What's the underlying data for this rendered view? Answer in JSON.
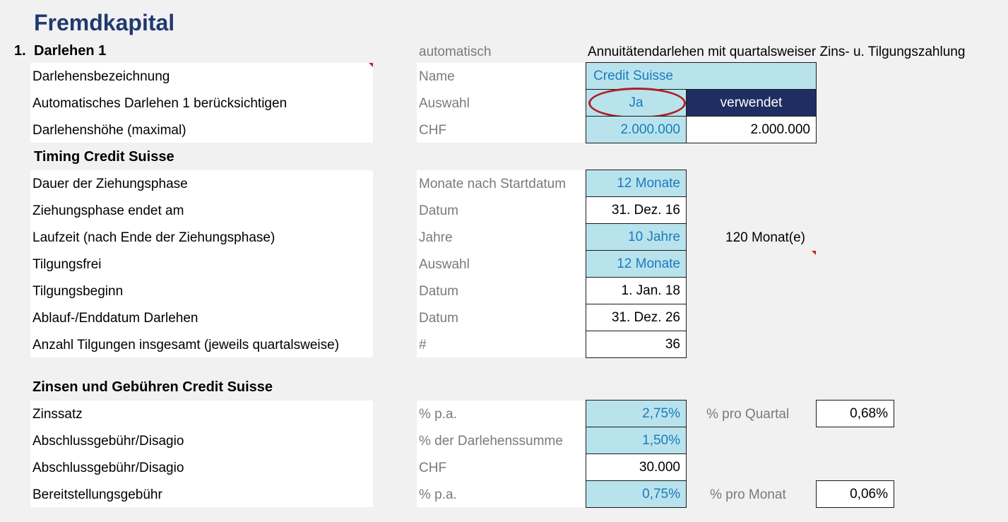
{
  "title": "Fremdkapital",
  "loan": {
    "number": "1.",
    "heading": "Darlehen 1",
    "mode": "automatisch",
    "description": "Annuitätendarlehen mit quartalsweiser Zins- u. Tilgungszahlung",
    "rows": [
      {
        "label": "Darlehensbezeichnung",
        "unit": "Name",
        "value": "Credit Suisse"
      },
      {
        "label": "Automatisches Darlehen 1 berücksichtigen",
        "unit": "Auswahl",
        "value": "Ja",
        "status": "verwendet"
      },
      {
        "label": "Darlehenshöhe (maximal)",
        "unit": "CHF",
        "value": "2.000.000",
        "result": "2.000.000"
      }
    ]
  },
  "timing": {
    "heading": "Timing Credit Suisse",
    "rows": [
      {
        "label": "Dauer der Ziehungsphase",
        "unit": "Monate nach Startdatum",
        "value": "12 Monate"
      },
      {
        "label": "Ziehungsphase endet am",
        "unit": "Datum",
        "value": "31. Dez. 16"
      },
      {
        "label": "Laufzeit (nach Ende der Ziehungsphase)",
        "unit": "Jahre",
        "value": "10 Jahre",
        "extra": "120 Monat(e)"
      },
      {
        "label": "Tilgungsfrei",
        "unit": "Auswahl",
        "value": "12 Monate"
      },
      {
        "label": "Tilgungsbeginn",
        "unit": "Datum",
        "value": "1. Jan. 18"
      },
      {
        "label": "Ablauf-/Enddatum Darlehen",
        "unit": "Datum",
        "value": "31. Dez. 26"
      },
      {
        "label": "Anzahl Tilgungen insgesamt (jeweils quartalsweise)",
        "unit": "#",
        "value": "36"
      }
    ]
  },
  "fees": {
    "heading": "Zinsen und Gebühren Credit Suisse",
    "rows": [
      {
        "label": "Zinssatz",
        "unit": "% p.a.",
        "value": "2,75%",
        "extra_label": "% pro Quartal",
        "extra_value": "0,68%"
      },
      {
        "label": "Abschlussgebühr/Disagio",
        "unit": "% der Darlehenssumme",
        "value": "1,50%"
      },
      {
        "label": "Abschlussgebühr/Disagio",
        "unit": "CHF",
        "value": "30.000"
      },
      {
        "label": "Bereitstellungsgebühr",
        "unit": "% p.a.",
        "value": "0,75%",
        "extra_label": "% pro Monat",
        "extra_value": "0,06%"
      }
    ]
  },
  "colors": {
    "input_fill": "#b9e3ec",
    "input_text": "#1a7bbf",
    "title": "#1f3a6e",
    "status_fill": "#1f2e62",
    "highlight_ellipse": "#b02026"
  }
}
